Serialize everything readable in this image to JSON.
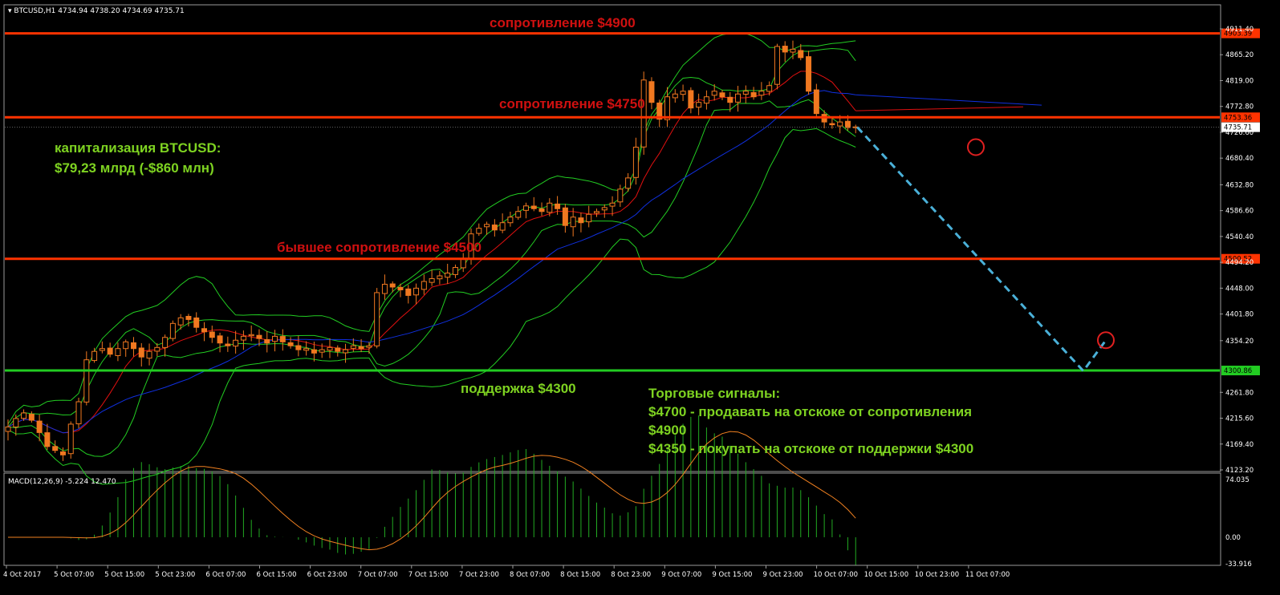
{
  "header": {
    "symbol": "BTCUSD,H1",
    "ohlc": "4734.94 4738.20 4734.69 4735.71"
  },
  "chart_data": {
    "type": "candlestick",
    "price_range": [
      4123.2,
      4911.4
    ],
    "price_ticks": [
      "4911.40",
      "4865.20",
      "4819.00",
      "4772.80",
      "4726.60",
      "4680.40",
      "4632.80",
      "4586.60",
      "4540.40",
      "4494.20",
      "4448.00",
      "4401.80",
      "4354.20",
      "4261.80",
      "4215.60",
      "4169.40",
      "4123.20"
    ],
    "time_labels": [
      "4 Oct 2017",
      "5 Oct 07:00",
      "5 Oct 15:00",
      "5 Oct 23:00",
      "6 Oct 07:00",
      "6 Oct 15:00",
      "6 Oct 23:00",
      "7 Oct 07:00",
      "7 Oct 15:00",
      "7 Oct 23:00",
      "8 Oct 07:00",
      "8 Oct 15:00",
      "8 Oct 23:00",
      "9 Oct 07:00",
      "9 Oct 15:00",
      "9 Oct 23:00",
      "10 Oct 07:00",
      "10 Oct 15:00",
      "10 Oct 23:00",
      "11 Oct 07:00"
    ],
    "close_path": [
      4200,
      4215,
      4225,
      4212,
      4190,
      4165,
      4158,
      4150,
      4205,
      4245,
      4320,
      4335,
      4340,
      4330,
      4340,
      4352,
      4340,
      4325,
      4335,
      4342,
      4360,
      4385,
      4395,
      4392,
      4378,
      4370,
      4360,
      4350,
      4345,
      4355,
      4362,
      4365,
      4358,
      4350,
      4362,
      4352,
      4345,
      4338,
      4340,
      4332,
      4338,
      4342,
      4335,
      4338,
      4345,
      4340,
      4345,
      4440,
      4455,
      4450,
      4445,
      4435,
      4448,
      4460,
      4465,
      4470,
      4475,
      4485,
      4500,
      4545,
      4555,
      4562,
      4552,
      4565,
      4575,
      4585,
      4595,
      4590,
      4585,
      4600,
      4590,
      4560,
      4575,
      4565,
      4580,
      4585,
      4592,
      4600,
      4625,
      4645,
      4700,
      4820,
      4780,
      4750,
      4790,
      4795,
      4800,
      4770,
      4780,
      4790,
      4800,
      4790,
      4780,
      4795,
      4800,
      4790,
      4800,
      4810,
      4880,
      4870,
      4875,
      4860,
      4800,
      4760,
      4745,
      4740,
      4745,
      4735,
      4735.71
    ],
    "levels": [
      {
        "label": "сопротивление $4900",
        "price": 4903.39,
        "tag": "4903.39",
        "color": "#ff3300"
      },
      {
        "label": "сопротивление $4750",
        "price": 4753.36,
        "tag": "4753.36",
        "color": "#ff3300"
      },
      {
        "label": "бывшее сопротивление $4500",
        "price": 4500.52,
        "tag": "4500.52",
        "color": "#ff3300"
      },
      {
        "label": "поддержка $4300",
        "price": 4300.86,
        "tag": "4300.86",
        "color": "#22cc22"
      }
    ],
    "current_price": "4735.71",
    "forecast": [
      4735.71,
      4300,
      4355
    ],
    "macd": {
      "label": "MACD(12,26,9) -5.224 12.470",
      "range": [
        -33.916,
        74.035
      ],
      "ticks": [
        "74.035",
        "0.00",
        "-33.916"
      ]
    }
  },
  "annotations": {
    "cap_title": "капитализация BTCUSD:",
    "cap_value": "$79,23 млрд (-$860 млн)",
    "signals_title": "Торговые сигналы:",
    "signal_1a": "$4700 - продавать на отскоке от сопротивления",
    "signal_1b": "$4900",
    "signal_2": "$4350 - покупать на отскоке от поддержки $4300"
  },
  "colors": {
    "bull_candle": "#000000",
    "bear_candle": "#f07820",
    "bollinger": "#22cc22",
    "ma_fast": "#e01010",
    "ma_slow": "#1030e0",
    "macd_hist": "#22aa22",
    "macd_signal": "#f08020",
    "forecast": "#4ab0d8"
  }
}
